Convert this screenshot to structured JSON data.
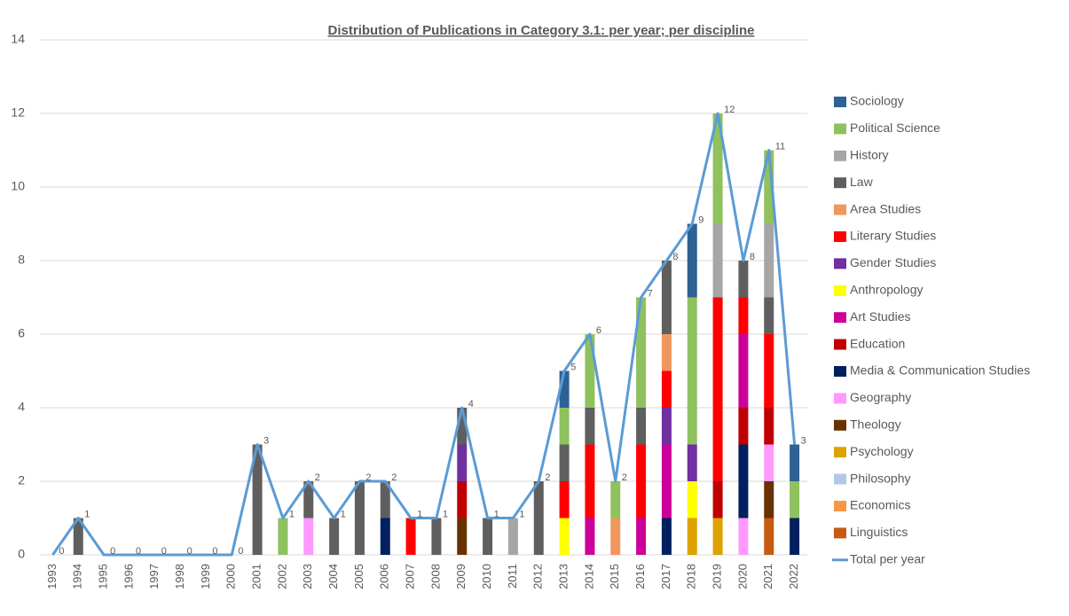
{
  "chart_data": {
    "type": "stacked_bar_line",
    "title": "Distribution of Publications in Category 3.1: per year; per discipline",
    "categories": [
      "1993",
      "1994",
      "1995",
      "1996",
      "1997",
      "1998",
      "1999",
      "2000",
      "2001",
      "2002",
      "2003",
      "2004",
      "2005",
      "2006",
      "2007",
      "2008",
      "2009",
      "2010",
      "2011",
      "2012",
      "2013",
      "2014",
      "2015",
      "2016",
      "2017",
      "2018",
      "2019",
      "2020",
      "2021",
      "2022"
    ],
    "ylim": [
      0,
      14
    ],
    "yticks": [
      0,
      2,
      4,
      6,
      8,
      10,
      12,
      14
    ],
    "grid": true,
    "legend": "right",
    "series": [
      {
        "name": "Sociology",
        "color": "#2e6194",
        "values": [
          0,
          0,
          0,
          0,
          0,
          0,
          0,
          0,
          0,
          0,
          0,
          0,
          0,
          0,
          0,
          0,
          0,
          0,
          0,
          0,
          1,
          0,
          0,
          0,
          0,
          2,
          0,
          0,
          0,
          1
        ]
      },
      {
        "name": "Political Science",
        "color": "#8fc15f",
        "values": [
          0,
          0,
          0,
          0,
          0,
          0,
          0,
          0,
          0,
          1,
          0,
          0,
          0,
          0,
          0,
          0,
          0,
          0,
          0,
          0,
          1,
          2,
          1,
          3,
          0,
          4,
          3,
          0,
          2,
          1
        ]
      },
      {
        "name": "History",
        "color": "#a6a6a6",
        "values": [
          0,
          0,
          0,
          0,
          0,
          0,
          0,
          0,
          0,
          0,
          0,
          0,
          0,
          0,
          0,
          0,
          0,
          0,
          1,
          0,
          0,
          0,
          0,
          0,
          0,
          0,
          2,
          0,
          2,
          0
        ]
      },
      {
        "name": "Law",
        "color": "#5f5f5f",
        "values": [
          0,
          1,
          0,
          0,
          0,
          0,
          0,
          0,
          3,
          0,
          1,
          1,
          2,
          1,
          0,
          1,
          1,
          1,
          0,
          2,
          1,
          1,
          0,
          1,
          2,
          0,
          0,
          1,
          1,
          0
        ]
      },
      {
        "name": "Area Studies",
        "color": "#f0975e",
        "values": [
          0,
          0,
          0,
          0,
          0,
          0,
          0,
          0,
          0,
          0,
          0,
          0,
          0,
          0,
          0,
          0,
          0,
          0,
          0,
          0,
          0,
          0,
          1,
          0,
          1,
          0,
          0,
          0,
          0,
          0
        ]
      },
      {
        "name": "Literary Studies",
        "color": "#ff0000",
        "values": [
          0,
          0,
          0,
          0,
          0,
          0,
          0,
          0,
          0,
          0,
          0,
          0,
          0,
          0,
          1,
          0,
          0,
          0,
          0,
          0,
          1,
          2,
          0,
          2,
          1,
          0,
          5,
          1,
          2,
          0
        ]
      },
      {
        "name": "Gender Studies",
        "color": "#7030a0",
        "values": [
          0,
          0,
          0,
          0,
          0,
          0,
          0,
          0,
          0,
          0,
          0,
          0,
          0,
          0,
          0,
          0,
          1,
          0,
          0,
          0,
          0,
          0,
          0,
          0,
          1,
          1,
          0,
          0,
          0,
          0
        ]
      },
      {
        "name": "Anthropology",
        "color": "#ffff00",
        "values": [
          0,
          0,
          0,
          0,
          0,
          0,
          0,
          0,
          0,
          0,
          0,
          0,
          0,
          0,
          0,
          0,
          0,
          0,
          0,
          0,
          1,
          0,
          0,
          0,
          0,
          1,
          0,
          0,
          0,
          0
        ]
      },
      {
        "name": "Art Studies",
        "color": "#cc0099",
        "values": [
          0,
          0,
          0,
          0,
          0,
          0,
          0,
          0,
          0,
          0,
          0,
          0,
          0,
          0,
          0,
          0,
          0,
          0,
          0,
          0,
          0,
          1,
          0,
          1,
          2,
          0,
          0,
          2,
          0,
          0
        ]
      },
      {
        "name": "Education",
        "color": "#c00000",
        "values": [
          0,
          0,
          0,
          0,
          0,
          0,
          0,
          0,
          0,
          0,
          0,
          0,
          0,
          0,
          0,
          0,
          1,
          0,
          0,
          0,
          0,
          0,
          0,
          0,
          0,
          0,
          1,
          1,
          1,
          0
        ]
      },
      {
        "name": "Media & Communication Studies",
        "color": "#002060",
        "values": [
          0,
          0,
          0,
          0,
          0,
          0,
          0,
          0,
          0,
          0,
          0,
          0,
          0,
          1,
          0,
          0,
          0,
          0,
          0,
          0,
          0,
          0,
          0,
          0,
          1,
          0,
          0,
          2,
          0,
          1
        ]
      },
      {
        "name": "Geography",
        "color": "#ff99ff",
        "values": [
          0,
          0,
          0,
          0,
          0,
          0,
          0,
          0,
          0,
          0,
          1,
          0,
          0,
          0,
          0,
          0,
          0,
          0,
          0,
          0,
          0,
          0,
          0,
          0,
          0,
          0,
          0,
          1,
          1,
          0
        ]
      },
      {
        "name": "Theology",
        "color": "#663300",
        "values": [
          0,
          0,
          0,
          0,
          0,
          0,
          0,
          0,
          0,
          0,
          0,
          0,
          0,
          0,
          0,
          0,
          1,
          0,
          0,
          0,
          0,
          0,
          0,
          0,
          0,
          0,
          0,
          0,
          1,
          0
        ]
      },
      {
        "name": "Psychology",
        "color": "#dca300",
        "values": [
          0,
          0,
          0,
          0,
          0,
          0,
          0,
          0,
          0,
          0,
          0,
          0,
          0,
          0,
          0,
          0,
          0,
          0,
          0,
          0,
          0,
          0,
          0,
          0,
          0,
          1,
          1,
          0,
          0,
          0
        ]
      },
      {
        "name": "Philosophy",
        "color": "#b4c7e7",
        "values": [
          0,
          0,
          0,
          0,
          0,
          0,
          0,
          0,
          0,
          0,
          0,
          0,
          0,
          0,
          0,
          0,
          0,
          0,
          0,
          0,
          0,
          0,
          0,
          0,
          0,
          0,
          0,
          0,
          0,
          0
        ]
      },
      {
        "name": "Economics",
        "color": "#f79646",
        "values": [
          0,
          0,
          0,
          0,
          0,
          0,
          0,
          0,
          0,
          0,
          0,
          0,
          0,
          0,
          0,
          0,
          0,
          0,
          0,
          0,
          0,
          0,
          0,
          0,
          0,
          0,
          0,
          0,
          0,
          0
        ]
      },
      {
        "name": "Linguistics",
        "color": "#c55a11",
        "values": [
          0,
          0,
          0,
          0,
          0,
          0,
          0,
          0,
          0,
          0,
          0,
          0,
          0,
          0,
          0,
          0,
          0,
          0,
          0,
          0,
          0,
          0,
          0,
          0,
          0,
          0,
          0,
          0,
          1,
          0
        ]
      }
    ],
    "line": {
      "name": "Total per year",
      "color": "#5b9bd5",
      "values": [
        0,
        1,
        0,
        0,
        0,
        0,
        0,
        0,
        3,
        1,
        2,
        1,
        2,
        2,
        1,
        1,
        4,
        1,
        1,
        2,
        5,
        6,
        2,
        7,
        8,
        9,
        12,
        8,
        11,
        3
      ]
    }
  }
}
